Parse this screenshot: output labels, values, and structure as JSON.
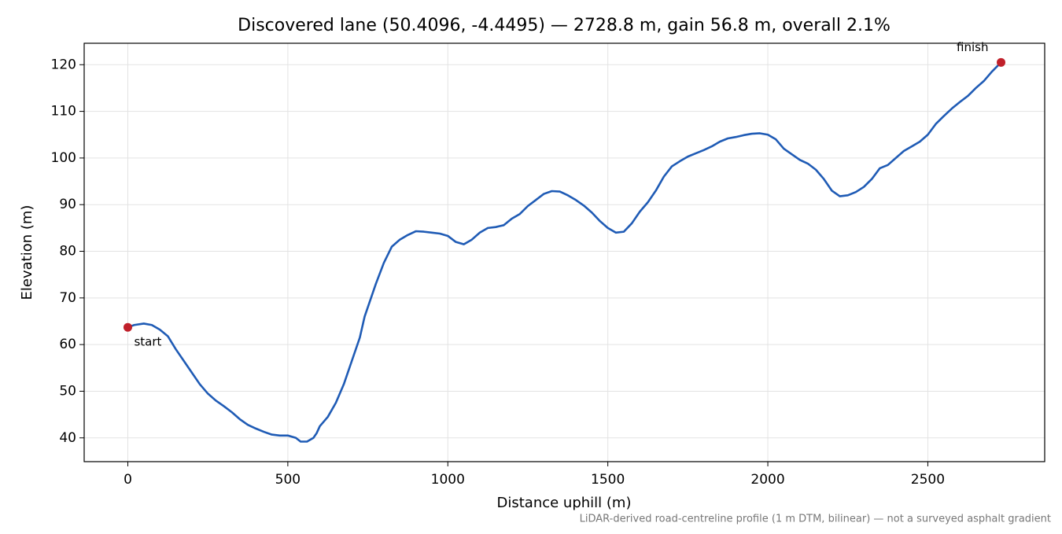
{
  "chart_data": {
    "type": "line",
    "title": "Discovered lane (50.4096, -4.4495) — 2728.8 m, gain 56.8 m, overall 2.1%",
    "x_label": "Distance uphill (m)",
    "y_label": "Elevation (m)",
    "footnote": "LiDAR-derived road-centreline profile (1 m DTM, bilinear) — not a surveyed asphalt gradient",
    "xlim": [
      -136.4,
      2865.2
    ],
    "ylim": [
      34.9,
      124.6
    ],
    "xticks": [
      0,
      500,
      1000,
      1500,
      2000,
      2500
    ],
    "yticks": [
      40,
      50,
      60,
      70,
      80,
      90,
      100,
      110,
      120
    ],
    "grid": true,
    "series": [
      {
        "color": "#1f5bb5",
        "x": [
          0,
          20,
          50,
          75,
          100,
          125,
          150,
          175,
          200,
          225,
          250,
          275,
          300,
          325,
          350,
          375,
          400,
          425,
          450,
          475,
          500,
          525,
          540,
          560,
          580,
          590,
          600,
          625,
          650,
          675,
          700,
          725,
          740,
          750,
          775,
          800,
          825,
          850,
          875,
          900,
          925,
          950,
          975,
          1000,
          1025,
          1050,
          1075,
          1100,
          1125,
          1150,
          1175,
          1200,
          1225,
          1250,
          1275,
          1300,
          1325,
          1350,
          1375,
          1400,
          1425,
          1450,
          1475,
          1500,
          1525,
          1550,
          1575,
          1600,
          1625,
          1650,
          1675,
          1700,
          1725,
          1750,
          1775,
          1800,
          1825,
          1850,
          1875,
          1900,
          1925,
          1950,
          1975,
          2000,
          2025,
          2050,
          2075,
          2100,
          2125,
          2150,
          2175,
          2200,
          2225,
          2250,
          2275,
          2300,
          2325,
          2350,
          2375,
          2400,
          2425,
          2450,
          2475,
          2500,
          2525,
          2550,
          2575,
          2600,
          2625,
          2650,
          2675,
          2700,
          2728.8
        ],
        "values": [
          63.7,
          64.2,
          64.5,
          64.2,
          63.2,
          61.8,
          59,
          56.5,
          54,
          51.5,
          49.5,
          48,
          46.8,
          45.5,
          44,
          42.8,
          42,
          41.3,
          40.7,
          40.5,
          40.5,
          40,
          39.2,
          39.2,
          40,
          41,
          42.5,
          44.5,
          47.5,
          51.5,
          56.5,
          61.5,
          66,
          68,
          73,
          77.5,
          81,
          82.5,
          83.5,
          84.3,
          84.2,
          84,
          83.8,
          83.3,
          82,
          81.5,
          82.5,
          84,
          85,
          85.2,
          85.6,
          87,
          88,
          89.7,
          91,
          92.3,
          92.9,
          92.8,
          92,
          91,
          89.8,
          88.3,
          86.5,
          85,
          84,
          84.2,
          86,
          88.5,
          90.5,
          93,
          96,
          98.2,
          99.3,
          100.3,
          101,
          101.7,
          102.5,
          103.5,
          104.2,
          104.5,
          104.9,
          105.2,
          105.3,
          105,
          104,
          102,
          100.8,
          99.6,
          98.8,
          97.5,
          95.5,
          93,
          91.8,
          92,
          92.7,
          93.8,
          95.5,
          97.8,
          98.5,
          100,
          101.5,
          102.5,
          103.5,
          105,
          107.3,
          109,
          110.6,
          112,
          113.3,
          115,
          116.5,
          118.5,
          120.5
        ]
      }
    ],
    "markers": {
      "color": "#c0202a",
      "labels": [
        "start",
        "finish"
      ],
      "x": [
        0,
        2728.8
      ],
      "values": [
        63.7,
        120.5
      ]
    }
  }
}
